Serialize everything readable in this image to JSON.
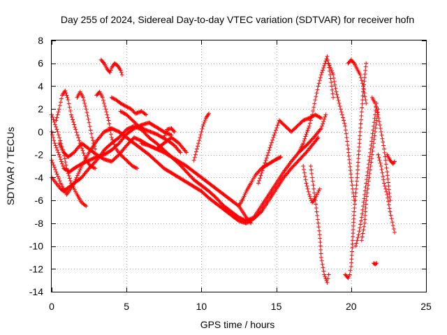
{
  "chart_data": {
    "type": "scatter",
    "title": "Day 255 of 2024, Sidereal Day-to-day VTEC variation (SDTVAR) for receiver hofn",
    "xlabel": "GPS time / hours",
    "ylabel": "SDTVAR / TECUs",
    "xlim": [
      0,
      25
    ],
    "ylim": [
      -14,
      8
    ],
    "xticks": [
      0,
      5,
      10,
      15,
      20,
      25
    ],
    "yticks": [
      -14,
      -12,
      -10,
      -8,
      -6,
      -4,
      -2,
      0,
      2,
      4,
      6,
      8
    ],
    "xtick_labels": [
      "0",
      "5",
      "10",
      "15",
      "20",
      "25"
    ],
    "ytick_labels": [
      "-14",
      "-12",
      "-10",
      "-8",
      "-6",
      "-4",
      "-2",
      "0",
      "2",
      "4",
      "6",
      "8"
    ],
    "grid": true,
    "marker": "+",
    "color": "#ff0000",
    "series": [
      {
        "name": "s1",
        "x": [
          0.0,
          0.3,
          0.6,
          0.8,
          1.0,
          1.5,
          2.0,
          2.5,
          3.0,
          3.3,
          3.5,
          4.0,
          4.5,
          5.0,
          5.5,
          6.0,
          6.5,
          7.0,
          7.5,
          8.0,
          8.5,
          9.0,
          9.5,
          10.0,
          10.5,
          11.0,
          11.5,
          12.0,
          12.5,
          13.0,
          13.5,
          14.0,
          14.5,
          15.0,
          15.5,
          16.0,
          16.5,
          17.0,
          17.5,
          18.0,
          18.3
        ],
        "y": [
          -4.0,
          -4.5,
          -5.0,
          -5.2,
          -5.0,
          -4.5,
          -4.0,
          -3.2,
          -2.5,
          -2.0,
          -1.6,
          -1.0,
          -0.5,
          0.2,
          0.5,
          0.2,
          -0.5,
          -1.0,
          -1.6,
          -2.2,
          -2.8,
          -3.5,
          -4.2,
          -4.7,
          -5.2,
          -5.8,
          -6.5,
          -7.0,
          -7.5,
          -7.8,
          -7.5,
          -6.5,
          -5.5,
          -4.5,
          -3.5,
          -2.6,
          -1.8,
          -1.2,
          -0.5,
          0.3,
          1.5
        ]
      },
      {
        "name": "s2",
        "x": [
          0.0,
          0.3,
          0.6,
          1.0,
          1.5,
          2.0,
          2.5,
          3.0,
          3.5,
          4.0,
          4.5,
          5.0,
          5.5,
          6.0,
          6.5,
          7.0,
          7.5,
          8.0,
          8.5,
          9.0,
          9.5,
          10.0,
          10.5,
          11.0,
          11.5,
          12.0,
          12.5,
          13.0,
          13.5,
          14.0,
          14.5,
          15.0,
          15.5,
          16.0,
          16.5,
          17.0,
          17.5,
          17.8
        ],
        "y": [
          -2.5,
          -3.5,
          -4.5,
          -5.5,
          -4.5,
          -3.0,
          -1.8,
          -0.8,
          0.0,
          0.3,
          0.0,
          -0.5,
          -1.0,
          -1.5,
          -2.0,
          -2.6,
          -3.2,
          -3.6,
          -4.0,
          -4.4,
          -4.8,
          -5.2,
          -5.8,
          -6.3,
          -6.8,
          -7.3,
          -7.8,
          -8.0,
          -7.6,
          -7.0,
          -6.0,
          -5.0,
          -4.0,
          -3.2,
          -2.5,
          -1.8,
          -1.0,
          -0.5
        ]
      },
      {
        "name": "s3",
        "x": [
          0.0,
          0.2,
          0.5,
          0.8,
          1.2,
          1.5,
          2.0,
          2.5,
          3.0,
          3.5,
          4.0,
          4.5,
          5.0,
          5.5,
          6.0,
          6.5,
          7.0,
          7.5,
          8.0
        ],
        "y": [
          0.0,
          -1.0,
          -2.0,
          -3.2,
          -3.5,
          -3.2,
          -2.8,
          -2.5,
          -2.2,
          -2.0,
          -1.6,
          -1.0,
          -0.2,
          0.3,
          0.6,
          0.8,
          0.4,
          0.0,
          -0.3
        ]
      },
      {
        "name": "s4",
        "x": [
          0.5,
          0.8,
          1.1,
          1.5,
          2.0,
          2.5,
          3.0,
          3.5,
          4.0,
          4.5,
          5.0,
          5.5,
          6.0,
          6.5,
          7.0,
          7.5,
          8.0,
          8.5,
          9.0
        ],
        "y": [
          -1.0,
          -1.8,
          -2.2,
          -1.8,
          -1.0,
          -1.5,
          -2.0,
          -2.4,
          -2.6,
          -2.0,
          -1.2,
          -0.5,
          -0.8,
          -1.2,
          -1.5,
          -1.0,
          -0.5,
          -1.0,
          -1.8
        ]
      },
      {
        "name": "s5",
        "x": [
          0.0,
          0.4,
          0.8,
          1.0,
          1.3,
          1.7,
          2.0,
          2.3
        ],
        "y": [
          1.5,
          0.0,
          -1.8,
          -3.2,
          -4.5,
          -5.5,
          -6.2,
          -6.5
        ]
      },
      {
        "name": "s6",
        "x": [
          0.3,
          0.5,
          0.7,
          0.9,
          1.1,
          1.3,
          1.6,
          1.9,
          2.3,
          2.6,
          2.9
        ],
        "y": [
          1.0,
          2.0,
          3.2,
          3.6,
          2.8,
          1.5,
          0.2,
          -1.0,
          -2.5,
          -3.0,
          -3.2
        ]
      },
      {
        "name": "s7",
        "x": [
          1.7,
          1.9,
          2.1,
          2.3,
          2.5,
          2.7,
          2.9
        ],
        "y": [
          3.0,
          3.5,
          3.0,
          2.0,
          0.8,
          -0.5,
          -1.5
        ]
      },
      {
        "name": "s8",
        "x": [
          3.0,
          3.2,
          3.4,
          3.6,
          3.8,
          4.0,
          4.3,
          4.6,
          5.0,
          5.4,
          5.7
        ],
        "y": [
          3.2,
          3.5,
          3.0,
          2.0,
          1.0,
          -0.5,
          -1.5,
          -2.0,
          -2.5,
          -3.0,
          -3.2
        ]
      },
      {
        "name": "s9",
        "x": [
          3.3,
          3.5,
          3.7,
          3.9,
          4.0,
          4.2,
          4.4,
          4.6,
          4.7
        ],
        "y": [
          6.3,
          6.0,
          5.5,
          5.2,
          5.6,
          6.0,
          5.8,
          5.4,
          5.0
        ]
      },
      {
        "name": "s10",
        "x": [
          4.0,
          4.3,
          4.6,
          5.0,
          5.3,
          5.6,
          6.0,
          6.3
        ],
        "y": [
          3.0,
          2.8,
          2.5,
          2.2,
          2.0,
          1.6,
          1.8,
          1.5
        ]
      },
      {
        "name": "s11",
        "x": [
          4.6,
          5.0,
          5.4,
          5.8,
          6.2,
          6.6,
          7.0,
          7.4,
          7.8,
          8.2,
          8.6
        ],
        "y": [
          1.8,
          1.5,
          1.0,
          0.5,
          0.2,
          0.0,
          -0.2,
          -0.5,
          -0.8,
          -1.2,
          -1.8
        ]
      },
      {
        "name": "s12",
        "x": [
          6.0,
          6.5,
          7.0,
          7.5,
          8.0,
          8.5,
          9.0,
          9.5,
          10.0,
          10.5,
          11.0,
          11.5,
          12.0,
          12.5,
          13.0,
          13.3
        ],
        "y": [
          -1.0,
          -1.2,
          -1.5,
          -1.8,
          -2.2,
          -2.6,
          -3.0,
          -3.5,
          -4.0,
          -4.5,
          -5.0,
          -5.5,
          -6.0,
          -6.5,
          -7.5,
          -8.0
        ]
      },
      {
        "name": "s13",
        "x": [
          7.5,
          7.7,
          8.0,
          8.2
        ],
        "y": [
          -0.5,
          0.2,
          0.3,
          0.0
        ]
      },
      {
        "name": "s14",
        "x": [
          9.5,
          9.7,
          9.9,
          10.1,
          10.3,
          10.5
        ],
        "y": [
          -2.5,
          -1.5,
          -0.5,
          0.5,
          1.2,
          1.6
        ]
      },
      {
        "name": "s15",
        "x": [
          12.5,
          12.8,
          13.0,
          13.3,
          13.6,
          14.0,
          14.5,
          15.0,
          15.3
        ],
        "y": [
          -6.5,
          -5.8,
          -5.2,
          -4.5,
          -3.8,
          -3.2,
          -2.8,
          -2.4,
          -2.2
        ]
      },
      {
        "name": "s16",
        "x": [
          13.8,
          14.3,
          14.8,
          15.2,
          15.6,
          16.0,
          16.4,
          16.8,
          17.2,
          17.6,
          18.0
        ],
        "y": [
          -4.5,
          -2.5,
          -0.5,
          1.0,
          0.5,
          0.0,
          0.5,
          1.0,
          1.2,
          1.5,
          1.2
        ]
      },
      {
        "name": "s17",
        "x": [
          16.5,
          16.8,
          17.0,
          17.2,
          17.4,
          17.6,
          17.8,
          18.0,
          18.2,
          18.4,
          18.6,
          18.8
        ],
        "y": [
          -1.8,
          -1.0,
          -0.2,
          0.5,
          1.5,
          2.8,
          4.0,
          5.0,
          5.8,
          6.6,
          5.0,
          3.0
        ]
      },
      {
        "name": "s18",
        "x": [
          17.3,
          17.5,
          17.7,
          17.9,
          18.0,
          18.2,
          18.4,
          18.5
        ],
        "y": [
          -3.0,
          -5.0,
          -7.0,
          -9.0,
          -11.0,
          -12.5,
          -13.2,
          -12.5
        ]
      },
      {
        "name": "s19",
        "x": [
          16.8,
          17.0,
          17.2,
          17.4,
          17.6,
          17.9
        ],
        "y": [
          -3.0,
          -4.5,
          -5.5,
          -6.2,
          -5.8,
          -5.0
        ]
      },
      {
        "name": "s20",
        "x": [
          18.5,
          18.8,
          19.0,
          19.3,
          19.6,
          19.8,
          20.0,
          20.2
        ],
        "y": [
          6.0,
          5.0,
          3.5,
          2.0,
          0.5,
          -1.5,
          -4.0,
          -6.0
        ]
      },
      {
        "name": "s21",
        "x": [
          19.6,
          19.8,
          19.9,
          20.0,
          20.1,
          20.2,
          20.4,
          20.6,
          20.8,
          21.0
        ],
        "y": [
          -12.5,
          -12.8,
          -12.5,
          -11.8,
          -9.5,
          -7.0,
          -4.0,
          0.0,
          3.5,
          6.0
        ]
      },
      {
        "name": "s22",
        "x": [
          19.8,
          20.0,
          20.2,
          20.4,
          20.6,
          20.8,
          21.0
        ],
        "y": [
          6.0,
          6.3,
          6.0,
          5.5,
          5.0,
          4.0,
          2.5
        ]
      },
      {
        "name": "s23",
        "x": [
          20.3,
          20.5,
          20.7,
          20.9,
          21.1,
          21.3,
          21.5,
          21.7
        ],
        "y": [
          -10.0,
          -9.0,
          -7.5,
          -5.5,
          -3.5,
          -1.5,
          0.5,
          2.5
        ]
      },
      {
        "name": "s24",
        "x": [
          20.7,
          20.9,
          21.0,
          21.2,
          21.4,
          21.6,
          21.8
        ],
        "y": [
          -9.5,
          -8.0,
          -6.0,
          -4.0,
          -2.0,
          0.0,
          2.0
        ]
      },
      {
        "name": "s25",
        "x": [
          21.4,
          21.6,
          21.8,
          22.0,
          22.2,
          22.4,
          22.6
        ],
        "y": [
          3.0,
          2.5,
          1.5,
          0.0,
          -1.5,
          -3.5,
          -6.0
        ]
      },
      {
        "name": "s26",
        "x": [
          21.8,
          22.0,
          22.2,
          22.4,
          22.6,
          22.8,
          22.9
        ],
        "y": [
          -2.0,
          -3.0,
          -4.5,
          -5.5,
          -7.0,
          -8.2,
          -8.8
        ]
      },
      {
        "name": "s27",
        "x": [
          22.4,
          22.6,
          22.8,
          22.9
        ],
        "y": [
          -2.0,
          -2.5,
          -2.8,
          -2.6
        ]
      },
      {
        "name": "s28",
        "x": [
          21.5,
          21.6,
          21.7
        ],
        "y": [
          -11.5,
          -11.6,
          -11.5
        ]
      }
    ]
  }
}
